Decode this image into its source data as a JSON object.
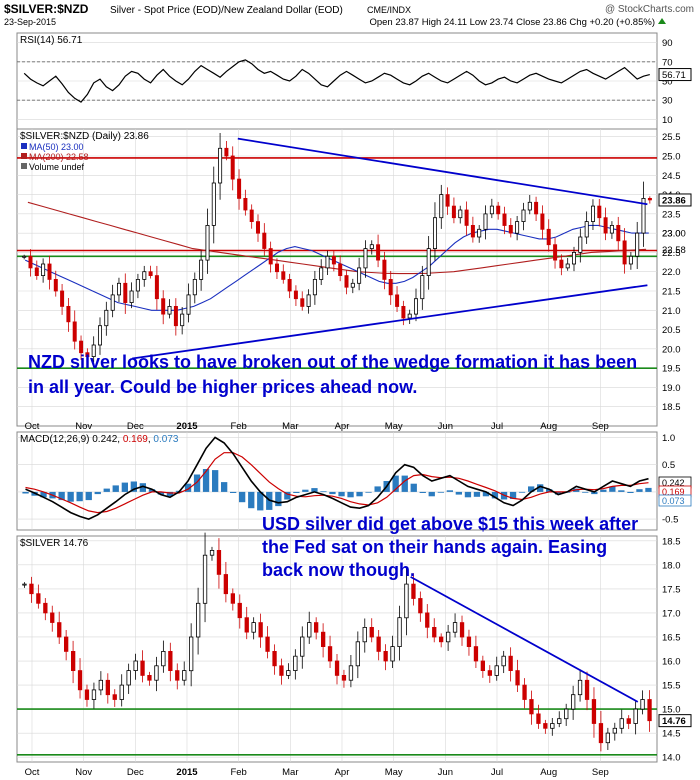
{
  "header": {
    "symbol": "$SILVER:$NZD",
    "description": "Silver - Spot Price (EOD)/New Zealand Dollar (EOD)",
    "exchange": "CME/INDX",
    "date": "23-Sep-2015",
    "watermark": "@ StockCharts.com",
    "ohlc_text": "Open 23.87  High 24.11  Low 23.74  Close 23.86  Chg +0.20 (+0.85%)",
    "chg_icon": "up-triangle-icon"
  },
  "colors": {
    "background": "#ffffff",
    "grid": "#d8d8d8",
    "candle_up": "#000000",
    "candle_down": "#cc0000",
    "ma50": "#1a2fbf",
    "ma200": "#b01e1e",
    "trendline": "#0000cc",
    "support_green": "#1a8a1a",
    "resistance_red": "#cc0000",
    "annotation_text": "#0000cc",
    "macd_line": "#000000",
    "signal_line": "#cc0000",
    "histogram": "#2b7bbf"
  },
  "chart_data": [
    {
      "id": "rsi",
      "type": "line",
      "label": "RSI(14) 56.71",
      "ylim": [
        0,
        100
      ],
      "yticks": [
        "90",
        "70",
        "50",
        "30",
        "10"
      ],
      "reference_lines": [
        70,
        30
      ],
      "last_value_label": "56.71",
      "values": [
        58,
        52,
        48,
        45,
        50,
        55,
        47,
        38,
        32,
        28,
        36,
        48,
        52,
        44,
        40,
        46,
        55,
        60,
        58,
        52,
        48,
        56,
        62,
        55,
        50,
        46,
        52,
        60,
        66,
        62,
        58,
        54,
        60,
        65,
        70,
        72,
        68,
        62,
        58,
        60,
        56,
        52,
        50,
        55,
        62,
        58,
        52,
        46,
        44,
        50,
        56,
        60,
        56,
        52,
        48,
        50,
        54,
        58,
        56,
        52,
        48,
        46,
        50,
        55,
        58,
        54,
        50,
        48,
        52,
        56,
        60,
        56,
        50,
        46,
        48,
        52,
        54,
        50,
        48,
        52,
        56,
        58,
        55,
        52,
        50,
        48,
        52,
        56,
        60,
        62,
        58,
        55,
        52,
        56,
        60,
        64,
        58,
        52,
        55,
        56.71
      ]
    },
    {
      "id": "price_nzd",
      "type": "candlestick",
      "label": "$SILVER:$NZD (Daily) 23.86",
      "legend": [
        {
          "name": "MA(50) 23.00",
          "color_key": "ma50"
        },
        {
          "name": "MA(200) 22.58",
          "color_key": "ma200"
        },
        {
          "name": "Volume undef",
          "color_key": "candle_up"
        }
      ],
      "ylim": [
        18.0,
        25.7
      ],
      "yticks": [
        "25.5",
        "25.0",
        "24.5",
        "24.0",
        "23.5",
        "23.0",
        "22.5",
        "22.0",
        "21.5",
        "21.0",
        "20.5",
        "20.0",
        "19.5",
        "19.0",
        "18.5"
      ],
      "price_tags": [
        {
          "value": 23.86,
          "text": "23.86",
          "style": "box"
        },
        {
          "value": 23.0,
          "text": "23.00",
          "style": "plain"
        },
        {
          "value": 22.58,
          "text": "22.58",
          "style": "plain"
        }
      ],
      "x_axis": [
        "Oct",
        "Nov",
        "Dec",
        "2015",
        "Feb",
        "Mar",
        "Apr",
        "May",
        "Jun",
        "Jul",
        "Aug",
        "Sep"
      ],
      "closes": [
        22.4,
        22.1,
        21.9,
        22.2,
        21.8,
        21.5,
        21.1,
        20.7,
        20.2,
        19.9,
        19.8,
        20.1,
        20.6,
        21.0,
        21.4,
        21.7,
        21.2,
        21.5,
        21.8,
        22.0,
        21.9,
        21.3,
        20.9,
        21.1,
        20.6,
        20.9,
        21.4,
        21.8,
        22.3,
        23.2,
        24.3,
        25.2,
        25.0,
        24.4,
        23.9,
        23.6,
        23.3,
        23.0,
        22.6,
        22.2,
        22.0,
        21.8,
        21.5,
        21.3,
        21.1,
        21.4,
        21.8,
        22.1,
        22.4,
        22.2,
        21.9,
        21.6,
        21.7,
        22.1,
        22.6,
        22.7,
        22.3,
        21.8,
        21.4,
        21.1,
        20.8,
        20.9,
        21.3,
        21.9,
        22.6,
        23.4,
        24.0,
        23.7,
        23.4,
        23.6,
        23.2,
        22.9,
        23.1,
        23.5,
        23.7,
        23.5,
        23.2,
        23.0,
        23.3,
        23.6,
        23.8,
        23.5,
        23.1,
        22.7,
        22.3,
        22.1,
        22.2,
        22.5,
        22.9,
        23.3,
        23.7,
        23.4,
        23.0,
        23.2,
        22.8,
        22.2,
        22.4,
        23.0,
        23.9,
        23.86
      ],
      "ma50": [
        22.3,
        22.2,
        22.1,
        22.0,
        21.9,
        21.8,
        21.7,
        21.6,
        21.5,
        21.4,
        21.3,
        21.2,
        21.15,
        21.1,
        21.05,
        21.0,
        21.0,
        21.0,
        21.0,
        21.05,
        21.1,
        21.2,
        21.3,
        21.45,
        21.6,
        21.75,
        21.9,
        22.05,
        22.2,
        22.35,
        22.5,
        22.6,
        22.65,
        22.6,
        22.55,
        22.45,
        22.35,
        22.25,
        22.15,
        22.05,
        21.95,
        21.85,
        21.75,
        21.7,
        21.7,
        21.75,
        21.85,
        22.0,
        22.15,
        22.35,
        22.55,
        22.75,
        22.9,
        23.0,
        23.05,
        23.1,
        23.1,
        23.05,
        23.0,
        22.95,
        22.9,
        22.85,
        22.85,
        22.9,
        23.0,
        23.1,
        23.15,
        23.2,
        23.2,
        23.15,
        23.1,
        23.05,
        23.0,
        23.0,
        23.0
      ],
      "ma200": [
        23.8,
        23.7,
        23.6,
        23.5,
        23.4,
        23.3,
        23.2,
        23.1,
        23.0,
        22.9,
        22.8,
        22.7,
        22.6,
        22.55,
        22.5,
        22.45,
        22.4,
        22.35,
        22.3,
        22.25,
        22.2,
        22.15,
        22.1,
        22.05,
        22.0,
        21.98,
        21.96,
        21.95,
        21.95,
        21.96,
        21.98,
        22.0,
        22.05,
        22.1,
        22.15,
        22.2,
        22.25,
        22.3,
        22.35,
        22.4,
        22.45,
        22.5,
        22.52,
        22.54,
        22.56,
        22.58
      ],
      "lines": [
        {
          "kind": "trend_upper",
          "color_key": "trendline",
          "points": [
            [
              0.345,
              25.45
            ],
            [
              0.985,
              23.75
            ]
          ]
        },
        {
          "kind": "trend_lower",
          "color_key": "trendline",
          "points": [
            [
              0.18,
              19.75
            ],
            [
              0.985,
              21.65
            ]
          ]
        },
        {
          "kind": "horizontal",
          "color_key": "resistance_red",
          "value": 24.95
        },
        {
          "kind": "horizontal",
          "color_key": "resistance_red",
          "value": 22.55
        },
        {
          "kind": "horizontal",
          "color_key": "support_green",
          "value": 22.4
        },
        {
          "kind": "horizontal",
          "color_key": "support_green",
          "value": 19.5
        }
      ],
      "annotation": "NZD silver looks to have broken out of the wedge formation it has been in all year. Could be higher prices ahead now."
    },
    {
      "id": "macd",
      "type": "line",
      "label_prefix": "MACD(12,26,9) 0.242, ",
      "label_signal": "0.169",
      "label_hist": "0.073",
      "ylim": [
        -0.7,
        1.1
      ],
      "yticks": [
        "1.0",
        "0.5",
        "0.0",
        "-0.5"
      ],
      "right_tags": [
        "0.242",
        "0.169",
        "0.073"
      ],
      "macd": [
        0.05,
        -0.02,
        -0.1,
        -0.18,
        -0.28,
        -0.38,
        -0.45,
        -0.5,
        -0.42,
        -0.3,
        -0.18,
        -0.05,
        0.05,
        0.1,
        0.05,
        -0.05,
        -0.1,
        0.0,
        0.2,
        0.5,
        0.8,
        1.0,
        0.9,
        0.7,
        0.45,
        0.2,
        0.0,
        -0.15,
        -0.2,
        -0.18,
        -0.1,
        -0.05,
        0.0,
        -0.05,
        -0.12,
        -0.2,
        -0.28,
        -0.3,
        -0.25,
        -0.1,
        0.1,
        0.35,
        0.5,
        0.45,
        0.3,
        0.2,
        0.25,
        0.3,
        0.2,
        0.1,
        0.05,
        0.0,
        -0.1,
        -0.2,
        -0.25,
        -0.15,
        0.0,
        0.1,
        0.05,
        -0.05,
        0.0,
        0.1,
        0.05,
        0.0,
        0.1,
        0.2,
        0.15,
        0.1,
        0.2,
        0.242
      ],
      "signal": [
        0.08,
        0.05,
        0.0,
        -0.06,
        -0.13,
        -0.2,
        -0.28,
        -0.35,
        -0.38,
        -0.36,
        -0.3,
        -0.22,
        -0.14,
        -0.06,
        0.0,
        0.0,
        -0.02,
        -0.02,
        0.05,
        0.18,
        0.38,
        0.6,
        0.72,
        0.72,
        0.64,
        0.5,
        0.34,
        0.18,
        0.06,
        -0.04,
        -0.08,
        -0.09,
        -0.07,
        -0.06,
        -0.08,
        -0.12,
        -0.18,
        -0.22,
        -0.24,
        -0.2,
        -0.1,
        0.05,
        0.2,
        0.3,
        0.32,
        0.28,
        0.26,
        0.27,
        0.25,
        0.2,
        0.14,
        0.08,
        0.02,
        -0.06,
        -0.12,
        -0.14,
        -0.1,
        -0.04,
        0.0,
        0.0,
        0.0,
        0.04,
        0.05,
        0.04,
        0.06,
        0.1,
        0.12,
        0.12,
        0.15,
        0.169
      ]
    },
    {
      "id": "price_usd",
      "type": "candlestick",
      "label": "$SILVER 14.76",
      "ylim": [
        13.9,
        18.6
      ],
      "yticks": [
        "18.5",
        "18.0",
        "17.5",
        "17.0",
        "16.5",
        "16.0",
        "15.5",
        "15.0",
        "14.5",
        "14.0"
      ],
      "price_tags": [
        {
          "value": 14.76,
          "text": "14.76",
          "style": "box"
        }
      ],
      "x_axis": [
        "Oct",
        "Nov",
        "Dec",
        "2015",
        "Feb",
        "Mar",
        "Apr",
        "May",
        "Jun",
        "Jul",
        "Aug",
        "Sep"
      ],
      "closes": [
        17.6,
        17.4,
        17.2,
        17.0,
        16.8,
        16.5,
        16.2,
        15.8,
        15.4,
        15.2,
        15.4,
        15.6,
        15.3,
        15.2,
        15.5,
        15.8,
        16.0,
        15.7,
        15.6,
        15.9,
        16.2,
        15.8,
        15.6,
        15.8,
        16.5,
        17.2,
        18.2,
        18.3,
        17.8,
        17.4,
        17.2,
        16.9,
        16.6,
        16.8,
        16.5,
        16.2,
        15.9,
        15.7,
        15.8,
        16.1,
        16.5,
        16.8,
        16.6,
        16.3,
        16.0,
        15.7,
        15.6,
        15.9,
        16.4,
        16.7,
        16.5,
        16.2,
        16.0,
        16.3,
        16.9,
        17.6,
        17.3,
        17.0,
        16.7,
        16.5,
        16.4,
        16.6,
        16.8,
        16.5,
        16.3,
        16.0,
        15.8,
        15.7,
        15.9,
        16.1,
        15.8,
        15.5,
        15.2,
        14.9,
        14.7,
        14.6,
        14.7,
        14.8,
        15.0,
        15.3,
        15.6,
        15.2,
        14.7,
        14.3,
        14.5,
        14.6,
        14.8,
        14.7,
        15.0,
        15.2,
        14.76
      ],
      "lines": [
        {
          "kind": "trend_down",
          "color_key": "trendline",
          "points": [
            [
              0.615,
              17.75
            ],
            [
              0.97,
              15.15
            ]
          ]
        },
        {
          "kind": "horizontal",
          "color_key": "support_green",
          "value": 15.0
        },
        {
          "kind": "horizontal",
          "color_key": "support_green",
          "value": 14.05
        }
      ],
      "annotation": "USD silver did get above $15 this week after the Fed sat on their hands again. Easing back now though."
    }
  ]
}
